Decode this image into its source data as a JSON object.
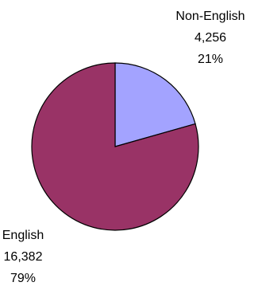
{
  "chart_data": {
    "type": "pie",
    "title": "",
    "slices": [
      {
        "label": "Non-English",
        "value": 4256,
        "value_text": "4,256",
        "percent": 21,
        "percent_text": "21%",
        "color": "#a3a3ff"
      },
      {
        "label": "English",
        "value": 16382,
        "value_text": "16,382",
        "percent": 79,
        "percent_text": "79%",
        "color": "#993366"
      }
    ],
    "edge_color": "#000000",
    "legend": "none"
  }
}
